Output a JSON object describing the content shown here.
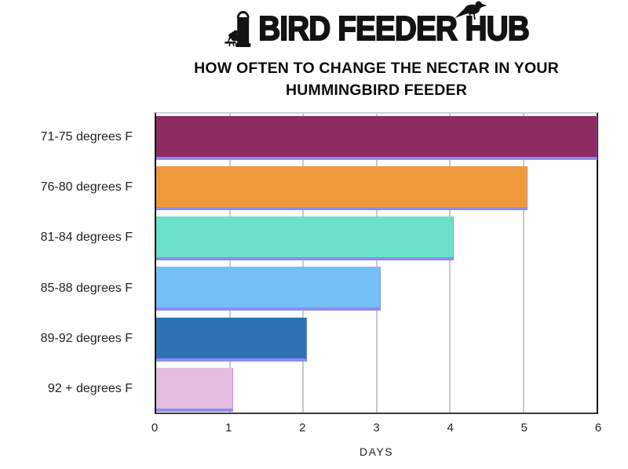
{
  "brand": {
    "name_part1": "BIRD FEEDER",
    "name_part2": "HUB"
  },
  "header": {
    "title_line1": "HOW OFTEN TO CHANGE THE NECTAR IN YOUR",
    "title_line2": "HUMMINGBIRD FEEDER"
  },
  "chart_data": {
    "type": "bar",
    "orientation": "horizontal",
    "title": "HOW OFTEN TO CHANGE THE NECTAR IN YOUR HUMMINGBIRD FEEDER",
    "categories": [
      "71-75 degrees F",
      "76-80 degrees F",
      "81-84 degrees F",
      "85-88 degrees F",
      "89-92 degrees F",
      "92 + degrees F"
    ],
    "values": [
      6,
      5,
      4,
      3,
      2,
      1
    ],
    "unit": "days",
    "bar_colors": [
      "#8D2A60",
      "#F0993C",
      "#6BE0C8",
      "#74BEF6",
      "#2E72B3",
      "#E4BCDE"
    ],
    "bar_edge_color": "#8C8CF0",
    "xlabel": "DAYS",
    "xlim": [
      0,
      6
    ],
    "xticks": [
      0,
      1,
      2,
      3,
      4,
      5,
      6
    ],
    "grid": true,
    "gridline_color": "#C8C8C8",
    "legend": false
  },
  "colors": {
    "background": "#FFFFFF",
    "text": "#1A1A1A",
    "axis": "#0D0D0D"
  }
}
